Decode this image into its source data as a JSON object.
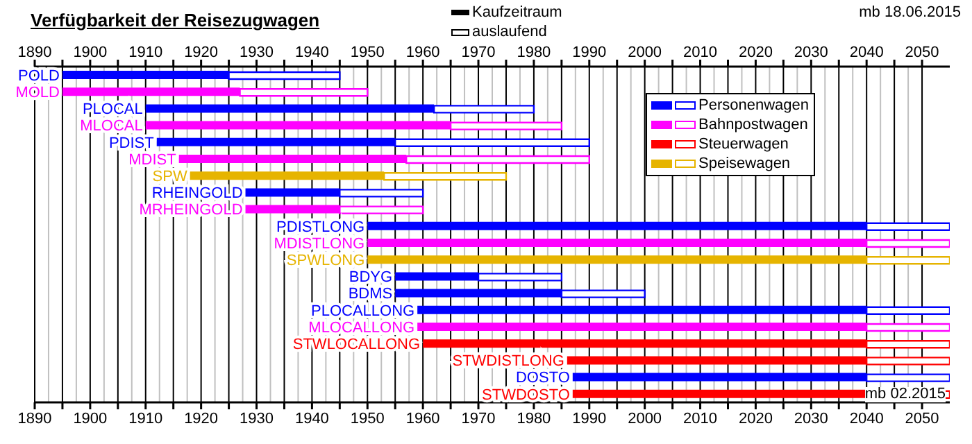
{
  "chart_data": {
    "type": "bar",
    "orientation": "horizontal",
    "title": "Verfügbarkeit der Reisezugwagen",
    "categories": [
      "POLD",
      "MOLD",
      "PLOCAL",
      "MLOCAL",
      "PDIST",
      "MDIST",
      "SPW",
      "RHEINGOLD",
      "MRHEINGOLD",
      "PDISTLONG",
      "MDISTLONG",
      "SPWLONG",
      "BDYG",
      "BDMS",
      "PLOCALLONG",
      "MLOCALLONG",
      "STWLOCALLONG",
      "STWDISTLONG",
      "DOSTO",
      "STWDOSTO"
    ],
    "series": [
      {
        "name": "Personenwagen",
        "color": "#0000ff",
        "base": [
          1895,
          null,
          1910,
          null,
          1912,
          null,
          null,
          1928,
          null,
          1950,
          null,
          null,
          1955,
          1955,
          1959,
          null,
          null,
          null,
          1987,
          null
        ],
        "values": [
          30,
          null,
          52,
          null,
          43,
          null,
          null,
          17,
          null,
          90,
          null,
          null,
          15,
          30,
          81,
          null,
          null,
          null,
          53,
          null
        ]
      },
      {
        "name": "Bahnpostwagen",
        "color": "#ff00ff",
        "base": [
          null,
          1895,
          null,
          1910,
          null,
          1916,
          null,
          null,
          1928,
          null,
          1950,
          null,
          null,
          null,
          null,
          1959,
          null,
          null,
          null,
          null
        ],
        "values": [
          null,
          32,
          null,
          55,
          null,
          41,
          null,
          null,
          17,
          null,
          90,
          null,
          null,
          null,
          null,
          81,
          null,
          null,
          null,
          null
        ]
      },
      {
        "name": "Steuerwagen",
        "color": "#ff0000",
        "base": [
          null,
          null,
          null,
          null,
          null,
          null,
          null,
          null,
          null,
          null,
          null,
          null,
          null,
          null,
          null,
          null,
          1960,
          1986,
          null,
          1987
        ],
        "values": [
          null,
          null,
          null,
          null,
          null,
          null,
          null,
          null,
          null,
          null,
          null,
          null,
          null,
          null,
          null,
          null,
          80,
          54,
          null,
          53
        ]
      },
      {
        "name": "Speisewagen",
        "color": "#e6b400",
        "base": [
          null,
          null,
          null,
          null,
          null,
          null,
          1918,
          null,
          null,
          null,
          null,
          1950,
          null,
          null,
          null,
          null,
          null,
          null,
          null,
          null
        ],
        "values": [
          null,
          null,
          null,
          null,
          null,
          null,
          35,
          null,
          null,
          null,
          null,
          90,
          null,
          null,
          null,
          null,
          null,
          null,
          null,
          null
        ]
      },
      {
        "color": "#0000ff",
        "base": [
          1925,
          null,
          1962,
          null,
          1955,
          null,
          null,
          1945,
          null,
          2040,
          null,
          null,
          1970,
          1985,
          2040,
          null,
          null,
          null,
          2040,
          null
        ],
        "values": [
          20,
          null,
          18,
          null,
          35,
          null,
          null,
          15,
          null,
          15,
          null,
          null,
          15,
          15,
          15,
          null,
          null,
          null,
          15,
          null
        ]
      },
      {
        "color": "#ff00ff",
        "base": [
          null,
          1927,
          null,
          1965,
          null,
          1957,
          null,
          null,
          1945,
          null,
          2040,
          null,
          null,
          null,
          null,
          2040,
          null,
          null,
          null,
          null
        ],
        "values": [
          null,
          23,
          null,
          20,
          null,
          33,
          null,
          null,
          15,
          null,
          15,
          null,
          null,
          null,
          null,
          15,
          null,
          null,
          null,
          null
        ]
      },
      {
        "color": "#ff0000",
        "base": [
          null,
          null,
          null,
          null,
          null,
          null,
          null,
          null,
          null,
          null,
          null,
          null,
          null,
          null,
          null,
          null,
          2040,
          2040,
          null,
          2040
        ],
        "values": [
          null,
          null,
          null,
          null,
          null,
          null,
          null,
          null,
          null,
          null,
          null,
          null,
          null,
          null,
          null,
          null,
          15,
          15,
          null,
          15
        ]
      },
      {
        "color": "#e6b400",
        "base": [
          null,
          null,
          null,
          null,
          null,
          null,
          1953,
          null,
          null,
          null,
          null,
          2040,
          null,
          null,
          null,
          null,
          null,
          null,
          null,
          null
        ],
        "values": [
          null,
          null,
          null,
          null,
          null,
          null,
          22,
          null,
          null,
          null,
          null,
          15,
          null,
          null,
          null,
          null,
          null,
          null,
          null,
          null
        ]
      }
    ],
    "xlim": [
      1890,
      2055
    ],
    "xticks": [
      1890,
      {
        "value": 1895,
        "label": null
      },
      1900,
      {
        "value": 1905,
        "label": null
      },
      1910,
      {
        "value": 1915,
        "label": null
      },
      1920,
      {
        "value": 1925,
        "label": null
      },
      1930,
      {
        "value": 1935,
        "label": null
      },
      1940,
      {
        "value": 1945,
        "label": null
      },
      1950,
      {
        "value": 1955,
        "label": null
      },
      1960,
      {
        "value": 1965,
        "label": null
      },
      1970,
      {
        "value": 1975,
        "label": null
      },
      1980,
      {
        "value": 1985,
        "label": null
      },
      1990,
      {
        "value": 1995,
        "label": null
      },
      2000,
      {
        "value": 2005,
        "label": null
      },
      2010,
      {
        "value": 2015,
        "label": null
      },
      2020,
      {
        "value": 2025,
        "label": null
      },
      2030,
      {
        "value": 2035,
        "label": null
      },
      2040,
      {
        "value": 2045,
        "label": null
      },
      2050
    ],
    "x2lim": [
      1890,
      2055
    ],
    "x2ticks": [
      1890,
      {
        "value": 1895,
        "label": null
      },
      1900,
      {
        "value": 1905,
        "label": null
      },
      1910,
      {
        "value": 1915,
        "label": null
      },
      1920,
      {
        "value": 1925,
        "label": null
      },
      1930,
      {
        "value": 1935,
        "label": null
      },
      1940,
      {
        "value": 1945,
        "label": null
      },
      1950,
      {
        "value": 1955,
        "label": null
      },
      1960,
      {
        "value": 1965,
        "label": null
      },
      1970,
      {
        "value": 1975,
        "label": null
      },
      1980,
      {
        "value": 1985,
        "label": null
      },
      1990,
      {
        "value": 1995,
        "label": null
      },
      2000,
      {
        "value": 2005,
        "label": null
      },
      2010,
      {
        "value": 2015,
        "label": null
      },
      2020,
      {
        "value": 2025,
        "label": null
      },
      2030,
      {
        "value": 2035,
        "label": null
      },
      2040,
      {
        "value": 2045,
        "label": null
      },
      2050
    ],
    "grid": "x",
    "legend": "top right",
    "annotations": [
      "Kaufzeitraum",
      "auslaufend",
      "mb 18.06.2015",
      "mb 02.2015"
    ]
  }
}
